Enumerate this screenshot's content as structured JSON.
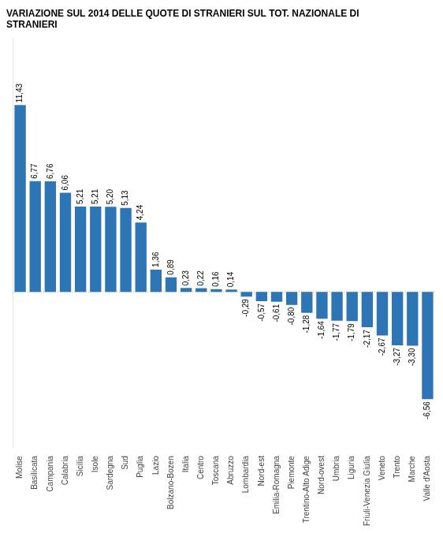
{
  "chart_data": {
    "type": "bar",
    "title": "VARIAZIONE SUL 2014 DELLE QUOTE DI STRANIERI SUL TOT. NAZIONALE DI\nSTRANIERI",
    "categories": [
      "Molise",
      "Basilicata",
      "Campania",
      "Calabria",
      "Sicilia",
      "Isole",
      "Sardegna",
      "Sud",
      "Puglia",
      "Lazio",
      "Bolzano-Bozen",
      "Italia",
      "Centro",
      "Toscana",
      "Abruzzo",
      "Lombardia",
      "Nord-est",
      "Emilia-Romagna",
      "Piemonte",
      "Trentino-Alto Adige",
      "Nord-ovest",
      "Umbria",
      "Liguria",
      "Friuli-Venezia Giulia",
      "Veneto",
      "Trento",
      "Marche",
      "Valle d'Aosta"
    ],
    "values": [
      11.43,
      6.77,
      6.76,
      6.06,
      5.21,
      5.21,
      5.2,
      5.13,
      4.24,
      1.36,
      0.89,
      0.23,
      0.22,
      0.16,
      0.14,
      -0.29,
      -0.57,
      -0.61,
      -0.8,
      -1.28,
      -1.64,
      -1.77,
      -1.79,
      -2.17,
      -2.67,
      -3.27,
      -3.3,
      -6.56
    ],
    "value_labels": [
      "11,43",
      "6,77",
      "6,76",
      "6,06",
      "5,21",
      "5,21",
      "5,20",
      "5,13",
      "4,24",
      "1,36",
      "0,89",
      "0,23",
      "0,22",
      "0,16",
      "0,14",
      "-0,29",
      "-0,57",
      "-0,61",
      "-0,80",
      "-1,28",
      "-1,64",
      "-1,77",
      "-1,79",
      "-2,17",
      "-2,67",
      "-3,27",
      "-3,30",
      "-6,56"
    ],
    "color": "#2e75b6",
    "ylim": [
      -9.5,
      15.5
    ],
    "grid": false,
    "data_labels": true,
    "tick_labels": "x"
  }
}
